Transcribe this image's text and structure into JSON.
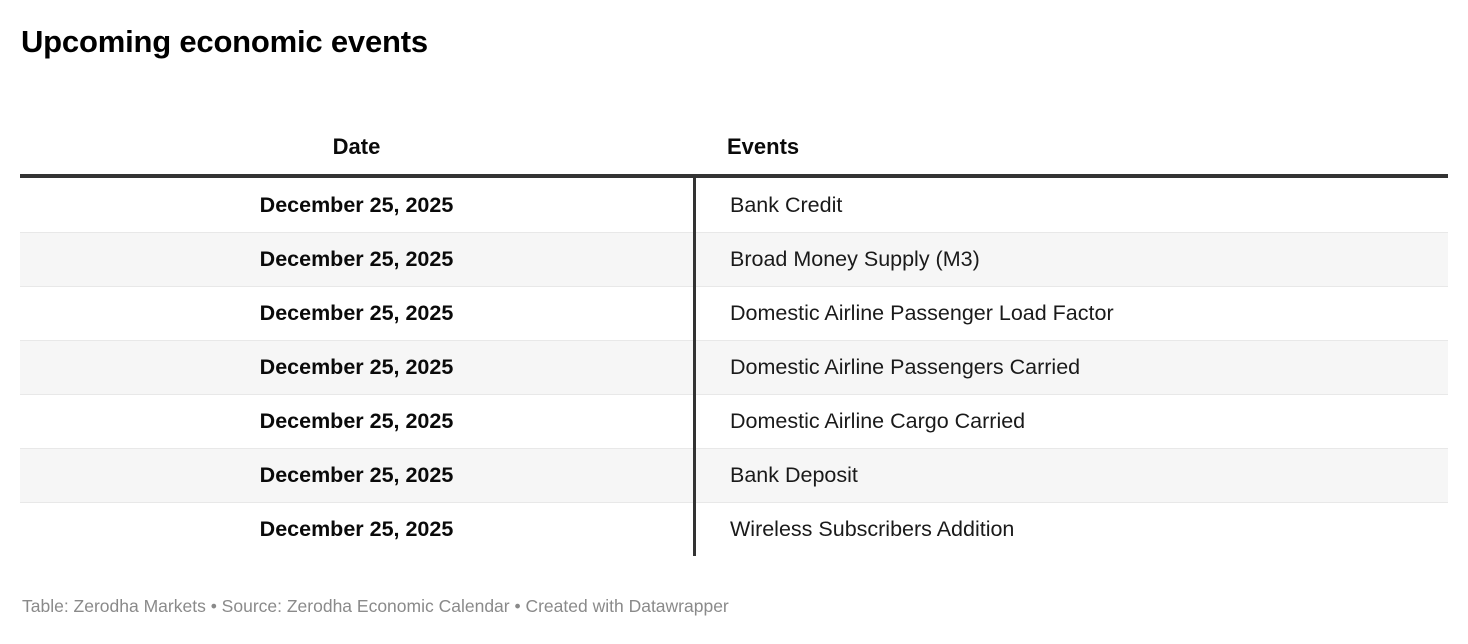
{
  "title": "Upcoming economic events",
  "table": {
    "columns": [
      {
        "label": "Date"
      },
      {
        "label": "Events"
      }
    ],
    "rows": [
      {
        "date": "December 25, 2025",
        "event": "Bank Credit"
      },
      {
        "date": "December 25, 2025",
        "event": "Broad Money Supply (M3)"
      },
      {
        "date": "December 25, 2025",
        "event": "Domestic Airline Passenger Load Factor"
      },
      {
        "date": "December 25, 2025",
        "event": "Domestic Airline Passengers Carried"
      },
      {
        "date": "December 25, 2025",
        "event": "Domestic Airline Cargo Carried"
      },
      {
        "date": "December 25, 2025",
        "event": "Bank Deposit"
      },
      {
        "date": "December 25, 2025",
        "event": "Wireless Subscribers Addition"
      }
    ]
  },
  "footer": {
    "text": "Table: Zerodha Markets • Source: Zerodha Economic Calendar • Created with Datawrapper"
  },
  "colors": {
    "header_border": "#333333",
    "column_divider": "#333333",
    "row_stripe": "#f6f6f6",
    "row_border": "#e8e8e8",
    "text": "#1a1a1a",
    "footer_text": "#8a8a8a"
  },
  "chart_data": {
    "type": "table",
    "title": "Upcoming economic events",
    "columns": [
      "Date",
      "Events"
    ],
    "rows": [
      [
        "December 25, 2025",
        "Bank Credit"
      ],
      [
        "December 25, 2025",
        "Broad Money Supply (M3)"
      ],
      [
        "December 25, 2025",
        "Domestic Airline Passenger Load Factor"
      ],
      [
        "December 25, 2025",
        "Domestic Airline Passengers Carried"
      ],
      [
        "December 25, 2025",
        "Domestic Airline Cargo Carried"
      ],
      [
        "December 25, 2025",
        "Bank Deposit"
      ],
      [
        "December 25, 2025",
        "Wireless Subscribers Addition"
      ]
    ],
    "layout_hints": {
      "date_column_align": "center",
      "events_column_align": "left",
      "striped_rows": true,
      "footer": "Table: Zerodha Markets • Source: Zerodha Economic Calendar • Created with Datawrapper"
    }
  }
}
